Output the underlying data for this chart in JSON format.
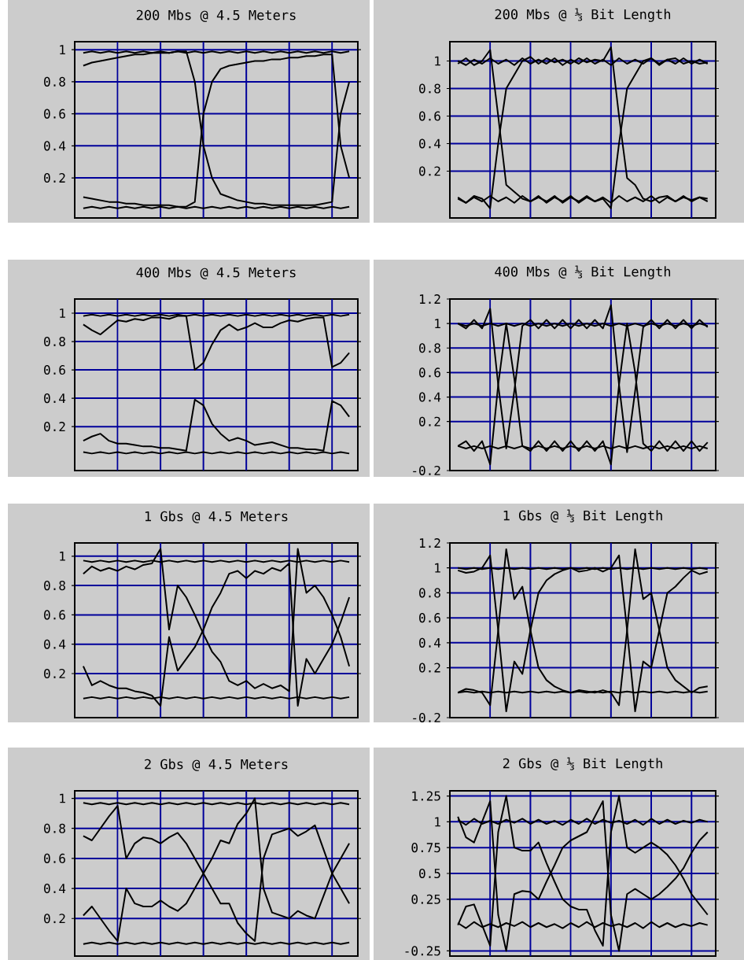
{
  "chart_data": [
    {
      "type": "line",
      "title": "200 Mbs @ 4.5 Meters",
      "categories": [
        null,
        null,
        null,
        null,
        null,
        null,
        null,
        null,
        null,
        null,
        null,
        null,
        null,
        null,
        null,
        null,
        null,
        null,
        null,
        null,
        null,
        null,
        null,
        null,
        null,
        null,
        null,
        null,
        null,
        null,
        null,
        null
      ],
      "ylim": [
        -0.05,
        1.05
      ],
      "yticks": [
        0.2,
        0.4,
        0.6,
        0.8,
        1
      ],
      "tick_labels": "y",
      "grid": true,
      "series": [
        {
          "color": "#000000",
          "values": [
            0.9,
            0.92,
            0.93,
            0.94,
            0.95,
            0.96,
            0.97,
            0.97,
            0.98,
            0.98,
            0.98,
            0.99,
            0.99,
            0.8,
            0.4,
            0.2,
            0.1,
            0.08,
            0.06,
            0.05,
            0.04,
            0.04,
            0.03,
            0.03,
            0.03,
            0.03,
            0.03,
            0.03,
            0.04,
            0.05,
            0.6,
            0.8
          ]
        },
        {
          "color": "#000000",
          "values": [
            0.08,
            0.07,
            0.06,
            0.05,
            0.05,
            0.04,
            0.04,
            0.03,
            0.03,
            0.03,
            0.03,
            0.02,
            0.02,
            0.05,
            0.6,
            0.8,
            0.88,
            0.9,
            0.91,
            0.92,
            0.93,
            0.93,
            0.94,
            0.94,
            0.95,
            0.95,
            0.96,
            0.96,
            0.97,
            0.97,
            0.4,
            0.2
          ]
        },
        {
          "color": "#000000",
          "values": [
            0.98,
            0.99,
            0.98,
            0.99,
            0.98,
            0.99,
            0.98,
            0.99,
            0.98,
            0.99,
            0.98,
            0.99,
            0.98,
            0.99,
            0.98,
            0.99,
            0.98,
            0.99,
            0.98,
            0.99,
            0.98,
            0.99,
            0.98,
            0.99,
            0.98,
            0.99,
            0.98,
            0.99,
            0.98,
            0.99,
            0.98,
            0.99
          ]
        },
        {
          "color": "#000000",
          "values": [
            0.01,
            0.02,
            0.01,
            0.02,
            0.01,
            0.02,
            0.01,
            0.02,
            0.01,
            0.02,
            0.01,
            0.02,
            0.01,
            0.02,
            0.01,
            0.02,
            0.01,
            0.02,
            0.01,
            0.02,
            0.01,
            0.02,
            0.01,
            0.02,
            0.01,
            0.02,
            0.01,
            0.02,
            0.01,
            0.02,
            0.01,
            0.02
          ]
        }
      ]
    },
    {
      "type": "line",
      "title": "200 Mbs @ ⅓ Bit Length",
      "categories": [
        null,
        null,
        null,
        null,
        null,
        null,
        null,
        null,
        null,
        null,
        null,
        null,
        null,
        null,
        null,
        null,
        null,
        null,
        null,
        null,
        null,
        null,
        null,
        null,
        null,
        null,
        null,
        null,
        null,
        null,
        null,
        null
      ],
      "ylim": [
        -0.14,
        1.14
      ],
      "yticks": [
        0.2,
        0.4,
        0.6,
        0.8,
        1
      ],
      "tick_labels": "y",
      "grid": true,
      "series": [
        {
          "color": "#000000",
          "values": [
            0.98,
            1.02,
            0.97,
            1,
            1.08,
            0.6,
            0.1,
            0.05,
            0,
            -0.02,
            0.02,
            -0.03,
            0.01,
            -0.02,
            0.02,
            -0.03,
            0.01,
            -0.02,
            0,
            -0.07,
            0.4,
            0.8,
            0.9,
            1,
            1.02,
            0.98,
            1.01,
            1.02,
            0.98,
            1,
            0.98,
            0.99
          ]
        },
        {
          "color": "#000000",
          "values": [
            0.01,
            -0.03,
            0.02,
            0,
            -0.07,
            0.4,
            0.8,
            0.9,
            1,
            1.03,
            0.98,
            1.02,
            0.99,
            1.01,
            0.98,
            1.02,
            0.99,
            1.01,
            1,
            1.1,
            0.6,
            0.15,
            0.1,
            0,
            -0.02,
            0.01,
            0.02,
            -0.02,
            0.01,
            -0.01,
            0.01,
            0
          ]
        },
        {
          "color": "#000000",
          "values": [
            1,
            0.97,
            1.01,
            0.98,
            1.02,
            0.98,
            1.01,
            0.97,
            1.02,
            0.98,
            1.01,
            0.98,
            1.02,
            0.97,
            1.01,
            0.98,
            1.02,
            0.98,
            1.01,
            0.97,
            1.02,
            0.98,
            1.01,
            0.98,
            1.02,
            0.97,
            1.01,
            0.98,
            1.02,
            0.98,
            1.01,
            0.98
          ]
        },
        {
          "color": "#000000",
          "values": [
            0,
            -0.03,
            0.01,
            -0.02,
            0.02,
            -0.02,
            0.01,
            -0.03,
            0.02,
            -0.02,
            0.01,
            -0.02,
            0.02,
            -0.03,
            0.01,
            -0.02,
            0.02,
            -0.02,
            0.01,
            -0.03,
            0.02,
            -0.02,
            0.01,
            -0.02,
            0.02,
            -0.03,
            0.01,
            -0.02,
            0.02,
            -0.02,
            0.01,
            -0.02
          ]
        }
      ]
    },
    {
      "type": "line",
      "title": "400 Mbs @ 4.5 Meters",
      "categories": [
        null,
        null,
        null,
        null,
        null,
        null,
        null,
        null,
        null,
        null,
        null,
        null,
        null,
        null,
        null,
        null,
        null,
        null,
        null,
        null,
        null,
        null,
        null,
        null,
        null,
        null,
        null,
        null,
        null,
        null,
        null,
        null
      ],
      "ylim": [
        -0.11,
        1.1
      ],
      "yticks": [
        0.2,
        0.4,
        0.6,
        0.8,
        1
      ],
      "tick_labels": "y",
      "grid": true,
      "series": [
        {
          "color": "#000000",
          "values": [
            0.92,
            0.88,
            0.85,
            0.9,
            0.95,
            0.94,
            0.96,
            0.95,
            0.97,
            0.97,
            0.96,
            0.98,
            0.98,
            0.6,
            0.65,
            0.78,
            0.88,
            0.92,
            0.88,
            0.9,
            0.93,
            0.9,
            0.9,
            0.93,
            0.95,
            0.94,
            0.96,
            0.97,
            0.97,
            0.62,
            0.65,
            0.72
          ]
        },
        {
          "color": "#000000",
          "values": [
            0.1,
            0.13,
            0.15,
            0.1,
            0.08,
            0.08,
            0.07,
            0.06,
            0.06,
            0.05,
            0.05,
            0.04,
            0.03,
            0.39,
            0.35,
            0.22,
            0.15,
            0.1,
            0.12,
            0.1,
            0.07,
            0.08,
            0.09,
            0.07,
            0.05,
            0.05,
            0.04,
            0.04,
            0.03,
            0.38,
            0.35,
            0.27
          ]
        },
        {
          "color": "#000000",
          "values": [
            0.98,
            0.99,
            0.98,
            0.99,
            0.98,
            0.99,
            0.98,
            0.99,
            0.98,
            0.99,
            0.98,
            0.99,
            0.98,
            0.99,
            0.98,
            0.99,
            0.98,
            0.99,
            0.98,
            0.99,
            0.98,
            0.99,
            0.98,
            0.99,
            0.98,
            0.99,
            0.98,
            0.99,
            0.98,
            0.99,
            0.98,
            0.99
          ]
        },
        {
          "color": "#000000",
          "values": [
            0.02,
            0.01,
            0.02,
            0.01,
            0.02,
            0.01,
            0.02,
            0.01,
            0.02,
            0.01,
            0.02,
            0.01,
            0.02,
            0.01,
            0.02,
            0.01,
            0.02,
            0.01,
            0.02,
            0.01,
            0.02,
            0.01,
            0.02,
            0.01,
            0.02,
            0.01,
            0.02,
            0.01,
            0.02,
            0.01,
            0.02,
            0.01
          ]
        }
      ]
    },
    {
      "type": "line",
      "title": "400 Mbs @ ⅓ Bit Length",
      "categories": [
        null,
        null,
        null,
        null,
        null,
        null,
        null,
        null,
        null,
        null,
        null,
        null,
        null,
        null,
        null,
        null,
        null,
        null,
        null,
        null,
        null,
        null,
        null,
        null,
        null,
        null,
        null,
        null,
        null,
        null,
        null,
        null
      ],
      "ylim": [
        -0.2,
        1.2
      ],
      "yticks": [
        -0.2,
        0.2,
        0.4,
        0.6,
        0.8,
        1,
        1.2
      ],
      "tick_labels": "y",
      "grid": true,
      "series": [
        {
          "color": "#000000",
          "values": [
            1,
            0.96,
            1.03,
            0.96,
            1.12,
            0.5,
            -0.02,
            0.45,
            0.98,
            1.03,
            0.96,
            1.03,
            0.96,
            1.03,
            0.96,
            1.03,
            0.96,
            1.03,
            0.96,
            1.15,
            0.5,
            -0.05,
            0.45,
            0.97,
            1.03,
            0.96,
            1.03,
            0.96,
            1.03,
            0.96,
            1.03,
            0.97
          ]
        },
        {
          "color": "#000000",
          "values": [
            0,
            0.04,
            -0.04,
            0.04,
            -0.15,
            0.5,
            1,
            0.55,
            0,
            -0.04,
            0.04,
            -0.04,
            0.04,
            -0.04,
            0.04,
            -0.04,
            0.04,
            -0.04,
            0.04,
            -0.15,
            0.5,
            1,
            0.6,
            0.02,
            -0.04,
            0.04,
            -0.04,
            0.04,
            -0.04,
            0.04,
            -0.04,
            0.03
          ]
        },
        {
          "color": "#000000",
          "values": [
            1,
            0.98,
            1,
            0.98,
            1,
            0.98,
            1,
            0.98,
            1,
            0.98,
            1,
            0.98,
            1,
            0.98,
            1,
            0.98,
            1,
            0.98,
            1,
            0.98,
            1,
            0.98,
            1,
            0.98,
            1,
            0.98,
            1,
            0.98,
            1,
            0.98,
            1,
            0.98
          ]
        },
        {
          "color": "#000000",
          "values": [
            0,
            -0.02,
            0,
            -0.02,
            0,
            -0.02,
            0,
            -0.02,
            0,
            -0.02,
            0,
            -0.02,
            0,
            -0.02,
            0,
            -0.02,
            0,
            -0.02,
            0,
            -0.02,
            0,
            -0.02,
            0,
            -0.02,
            0,
            -0.02,
            0,
            -0.02,
            0,
            -0.02,
            0,
            -0.02
          ]
        }
      ]
    },
    {
      "type": "line",
      "title": "1 Gbs @ 4.5 Meters",
      "categories": [
        null,
        null,
        null,
        null,
        null,
        null,
        null,
        null,
        null,
        null,
        null,
        null,
        null,
        null,
        null,
        null,
        null,
        null,
        null,
        null,
        null,
        null,
        null,
        null,
        null,
        null,
        null,
        null,
        null,
        null,
        null,
        null
      ],
      "ylim": [
        -0.1,
        1.09
      ],
      "yticks": [
        0.2,
        0.4,
        0.6,
        0.8,
        1
      ],
      "tick_labels": "y",
      "grid": true,
      "series": [
        {
          "color": "#000000",
          "values": [
            0.88,
            0.93,
            0.9,
            0.92,
            0.9,
            0.93,
            0.91,
            0.94,
            0.95,
            1.05,
            0.5,
            0.8,
            0.72,
            0.6,
            0.47,
            0.35,
            0.28,
            0.15,
            0.12,
            0.15,
            0.1,
            0.13,
            0.1,
            0.12,
            0.08,
            1.05,
            0.75,
            0.8,
            0.72,
            0.6,
            0.45,
            0.25
          ]
        },
        {
          "color": "#000000",
          "values": [
            0.25,
            0.12,
            0.15,
            0.12,
            0.1,
            0.1,
            0.08,
            0.07,
            0.05,
            -0.02,
            0.45,
            0.22,
            0.3,
            0.38,
            0.5,
            0.65,
            0.75,
            0.88,
            0.9,
            0.85,
            0.9,
            0.88,
            0.92,
            0.9,
            0.95,
            -0.02,
            0.3,
            0.2,
            0.3,
            0.4,
            0.55,
            0.72
          ]
        },
        {
          "color": "#000000",
          "values": [
            0.97,
            0.96,
            0.97,
            0.96,
            0.97,
            0.96,
            0.97,
            0.96,
            0.97,
            0.96,
            0.97,
            0.96,
            0.97,
            0.96,
            0.97,
            0.96,
            0.97,
            0.96,
            0.97,
            0.96,
            0.97,
            0.96,
            0.97,
            0.96,
            0.97,
            0.96,
            0.97,
            0.96,
            0.97,
            0.96,
            0.97,
            0.96
          ]
        },
        {
          "color": "#000000",
          "values": [
            0.03,
            0.04,
            0.03,
            0.04,
            0.03,
            0.04,
            0.03,
            0.04,
            0.03,
            0.04,
            0.03,
            0.04,
            0.03,
            0.04,
            0.03,
            0.04,
            0.03,
            0.04,
            0.03,
            0.04,
            0.03,
            0.04,
            0.03,
            0.04,
            0.03,
            0.04,
            0.03,
            0.04,
            0.03,
            0.04,
            0.03,
            0.04
          ]
        }
      ]
    },
    {
      "type": "line",
      "title": "1 Gbs @ ⅓ Bit Length",
      "categories": [
        null,
        null,
        null,
        null,
        null,
        null,
        null,
        null,
        null,
        null,
        null,
        null,
        null,
        null,
        null,
        null,
        null,
        null,
        null,
        null,
        null,
        null,
        null,
        null,
        null,
        null,
        null,
        null,
        null,
        null,
        null,
        null
      ],
      "ylim": [
        -0.2,
        1.2
      ],
      "yticks": [
        -0.2,
        0.2,
        0.4,
        0.6,
        0.8,
        1,
        1.2
      ],
      "tick_labels": "y",
      "grid": true,
      "series": [
        {
          "color": "#000000",
          "values": [
            0.98,
            0.96,
            0.97,
            1,
            1.1,
            0.5,
            -0.15,
            0.25,
            0.15,
            0.5,
            0.8,
            0.9,
            0.95,
            0.98,
            1,
            0.97,
            0.98,
            1,
            0.97,
            1,
            1.1,
            0.5,
            -0.15,
            0.25,
            0.2,
            0.5,
            0.8,
            0.85,
            0.92,
            0.98,
            0.95,
            0.97
          ]
        },
        {
          "color": "#000000",
          "values": [
            0,
            0.03,
            0.02,
            0,
            -0.1,
            0.5,
            1.15,
            0.75,
            0.85,
            0.5,
            0.2,
            0.1,
            0.05,
            0.02,
            0,
            0.02,
            0.01,
            0,
            0.02,
            0,
            -0.1,
            0.5,
            1.15,
            0.75,
            0.8,
            0.5,
            0.2,
            0.1,
            0.05,
            0,
            0.04,
            0.05
          ]
        },
        {
          "color": "#000000",
          "values": [
            1,
            0.99,
            1,
            0.99,
            1,
            0.99,
            1,
            0.99,
            1,
            0.99,
            1,
            0.99,
            1,
            0.99,
            1,
            0.99,
            1,
            0.99,
            1,
            0.99,
            1,
            0.99,
            1,
            0.99,
            1,
            0.99,
            1,
            0.99,
            1,
            0.99,
            1,
            0.99
          ]
        },
        {
          "color": "#000000",
          "values": [
            0,
            0.01,
            0,
            0.01,
            0,
            0.01,
            0,
            0.01,
            0,
            0.01,
            0,
            0.01,
            0,
            0.01,
            0,
            0.01,
            0,
            0.01,
            0,
            0.01,
            0,
            0.01,
            0,
            0.01,
            0,
            0.01,
            0,
            0.01,
            0,
            0.01,
            0,
            0.01
          ]
        }
      ]
    },
    {
      "type": "line",
      "title": "2 Gbs @ 4.5 Meters",
      "categories": [
        null,
        null,
        null,
        null,
        null,
        null,
        null,
        null,
        null,
        null,
        null,
        null,
        null,
        null,
        null,
        null,
        null,
        null,
        null,
        null,
        null,
        null,
        null,
        null,
        null,
        null,
        null,
        null,
        null,
        null,
        null,
        null
      ],
      "ylim": [
        -0.05,
        1.05
      ],
      "yticks": [
        0.2,
        0.4,
        0.6,
        0.8,
        1
      ],
      "tick_labels": "y",
      "grid": true,
      "series": [
        {
          "color": "#000000",
          "values": [
            0.75,
            0.72,
            0.8,
            0.88,
            0.95,
            0.6,
            0.7,
            0.74,
            0.73,
            0.7,
            0.74,
            0.77,
            0.7,
            0.6,
            0.5,
            0.4,
            0.3,
            0.3,
            0.17,
            0.1,
            0.05,
            0.6,
            0.76,
            0.78,
            0.8,
            0.75,
            0.78,
            0.82,
            0.66,
            0.5,
            0.4,
            0.3
          ]
        },
        {
          "color": "#000000",
          "values": [
            0.22,
            0.28,
            0.2,
            0.12,
            0.05,
            0.4,
            0.3,
            0.28,
            0.28,
            0.32,
            0.28,
            0.25,
            0.3,
            0.4,
            0.5,
            0.6,
            0.72,
            0.7,
            0.83,
            0.9,
            1,
            0.4,
            0.24,
            0.22,
            0.2,
            0.25,
            0.22,
            0.2,
            0.35,
            0.5,
            0.6,
            0.7
          ]
        },
        {
          "color": "#000000",
          "values": [
            0.97,
            0.96,
            0.97,
            0.96,
            0.97,
            0.96,
            0.97,
            0.96,
            0.97,
            0.96,
            0.97,
            0.96,
            0.97,
            0.96,
            0.97,
            0.96,
            0.97,
            0.96,
            0.97,
            0.96,
            0.97,
            0.96,
            0.97,
            0.96,
            0.97,
            0.96,
            0.97,
            0.96,
            0.97,
            0.96,
            0.97,
            0.96
          ]
        },
        {
          "color": "#000000",
          "values": [
            0.03,
            0.04,
            0.03,
            0.04,
            0.03,
            0.04,
            0.03,
            0.04,
            0.03,
            0.04,
            0.03,
            0.04,
            0.03,
            0.04,
            0.03,
            0.04,
            0.03,
            0.04,
            0.03,
            0.04,
            0.03,
            0.04,
            0.03,
            0.04,
            0.03,
            0.04,
            0.03,
            0.04,
            0.03,
            0.04,
            0.03,
            0.04
          ]
        }
      ]
    },
    {
      "type": "line",
      "title": "2 Gbs @ ⅓ Bit Length",
      "categories": [
        null,
        null,
        null,
        null,
        null,
        null,
        null,
        null,
        null,
        null,
        null,
        null,
        null,
        null,
        null,
        null,
        null,
        null,
        null,
        null,
        null,
        null,
        null,
        null,
        null,
        null,
        null,
        null,
        null,
        null,
        null,
        null
      ],
      "ylim": [
        -0.3,
        1.3
      ],
      "yticks": [
        -0.25,
        0.25,
        0.5,
        0.75,
        1,
        1.25
      ],
      "tick_labels": "y",
      "grid": true,
      "series": [
        {
          "color": "#000000",
          "values": [
            1.05,
            0.85,
            0.8,
            1,
            1.2,
            0.1,
            -0.25,
            0.3,
            0.33,
            0.32,
            0.25,
            0.42,
            0.58,
            0.75,
            0.82,
            0.86,
            0.9,
            1.05,
            1.2,
            0.1,
            -0.25,
            0.3,
            0.35,
            0.3,
            0.25,
            0.3,
            0.37,
            0.45,
            0.55,
            0.7,
            0.82,
            0.9
          ]
        },
        {
          "color": "#000000",
          "values": [
            0,
            0.18,
            0.2,
            0,
            -0.2,
            0.9,
            1.25,
            0.75,
            0.72,
            0.72,
            0.8,
            0.6,
            0.42,
            0.25,
            0.18,
            0.15,
            0.15,
            -0.05,
            -0.2,
            0.9,
            1.25,
            0.75,
            0.7,
            0.75,
            0.8,
            0.75,
            0.68,
            0.58,
            0.45,
            0.3,
            0.2,
            0.1
          ]
        },
        {
          "color": "#000000",
          "values": [
            1.02,
            0.97,
            1.03,
            0.98,
            1.01,
            0.98,
            1.02,
            0.99,
            1.03,
            0.98,
            1.02,
            0.98,
            1.01,
            0.97,
            1.02,
            0.98,
            1.03,
            0.98,
            1.02,
            0.99,
            1.01,
            0.98,
            1.02,
            0.97,
            1.03,
            0.98,
            1.02,
            0.98,
            1.01,
            0.99,
            1.02,
            1
          ]
        },
        {
          "color": "#000000",
          "values": [
            0.02,
            -0.03,
            0.03,
            -0.02,
            0.01,
            -0.02,
            0.02,
            -0.01,
            0.03,
            -0.02,
            0.02,
            -0.02,
            0.01,
            -0.03,
            0.02,
            -0.02,
            0.03,
            -0.02,
            0.02,
            -0.01,
            0.01,
            -0.02,
            0.02,
            -0.03,
            0.03,
            -0.02,
            0.02,
            -0.02,
            0.01,
            -0.01,
            0.02,
            0
          ]
        }
      ]
    }
  ]
}
